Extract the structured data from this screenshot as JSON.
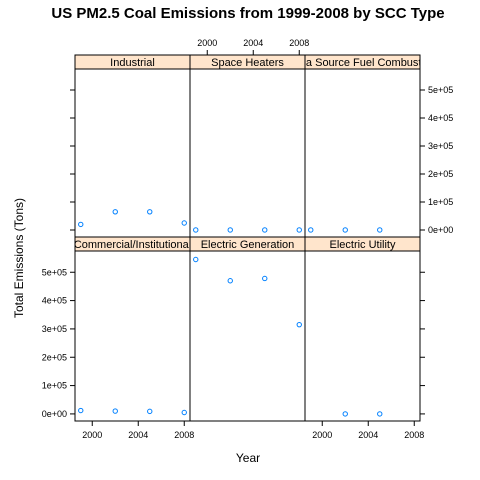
{
  "chart_data": {
    "type": "scatter",
    "title": "US PM2.5 Coal Emissions from 1999-2008 by SCC Type",
    "xlabel": "Year",
    "ylabel": "Total Emissions (Tons)",
    "x_ticks": [
      2000,
      2004,
      2008
    ],
    "x_tick_labels": [
      "2000",
      "2004",
      "2008"
    ],
    "xlim": [
      1998.5,
      2008.5
    ],
    "y_ticks": [
      0,
      100000,
      200000,
      300000,
      400000,
      500000
    ],
    "y_tick_labels": [
      "0e+00",
      "1e+05",
      "2e+05",
      "3e+05",
      "4e+05",
      "5e+05"
    ],
    "ylim": [
      -25000,
      575000
    ],
    "layout": "3 columns x 2 rows",
    "point_color": "#0080ff",
    "strip_color": "#ffe5cc",
    "panels": [
      {
        "name": "Industrial",
        "x": [
          1999,
          2002,
          2005,
          2008
        ],
        "y": [
          20000,
          65000,
          65000,
          25000
        ]
      },
      {
        "name": "Space Heaters",
        "x": [
          1999,
          2002,
          2005,
          2008
        ],
        "y": [
          200,
          200,
          200,
          200
        ]
      },
      {
        "name": "Area Source Fuel Combustion",
        "x": [
          1999,
          2002,
          2005
        ],
        "y": [
          200,
          200,
          200
        ]
      },
      {
        "name": "Commercial/Institutional",
        "x": [
          1999,
          2002,
          2005,
          2008
        ],
        "y": [
          12000,
          10000,
          9000,
          5000
        ]
      },
      {
        "name": "Electric Generation",
        "x": [
          1999,
          2002,
          2005,
          2008
        ],
        "y": [
          545000,
          470000,
          478000,
          315000
        ]
      },
      {
        "name": "Electric Utility",
        "x": [
          2002,
          2005
        ],
        "y": [
          100,
          100
        ]
      }
    ]
  }
}
